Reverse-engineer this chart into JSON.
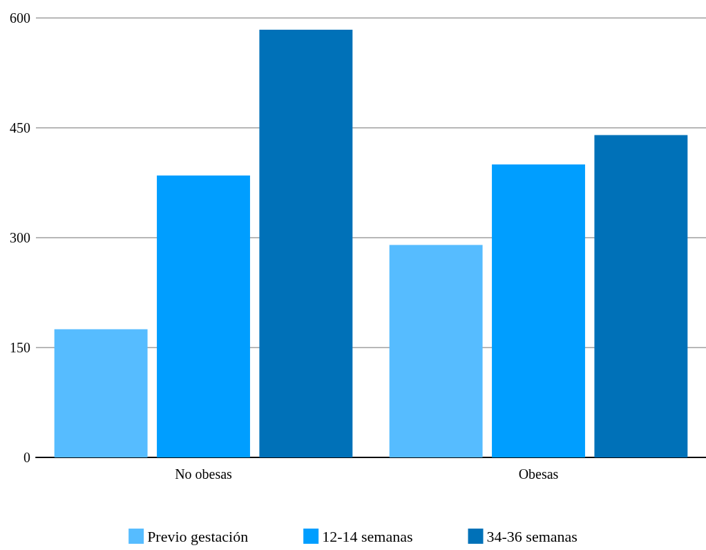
{
  "chart_data": {
    "type": "bar",
    "categories": [
      "No obesas",
      "Obesas"
    ],
    "series": [
      {
        "name": "Previo gestación",
        "color": "#56bcff",
        "values": [
          175,
          290
        ]
      },
      {
        "name": "12-14 semanas",
        "color": "#009eff",
        "values": [
          385,
          400
        ]
      },
      {
        "name": "34-36 semanas",
        "color": "#0071b8",
        "values": [
          584,
          440
        ]
      }
    ],
    "ylim": [
      0,
      600
    ],
    "yticks": [
      0,
      150,
      300,
      450,
      600
    ],
    "grid": "y",
    "legend": "bottom"
  }
}
